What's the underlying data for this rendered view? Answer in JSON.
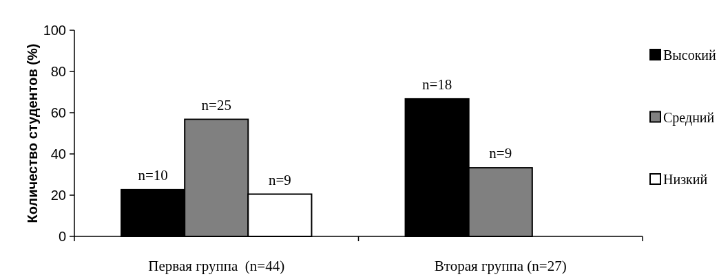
{
  "chart_data": {
    "type": "bar",
    "ylabel": "Количество студентов (%)",
    "categories": [
      "Первая группа  (n=44)",
      "Вторая группа (n=27)"
    ],
    "series": [
      {
        "name": "Высокий",
        "color": "#000000",
        "values": [
          22.7,
          66.7
        ]
      },
      {
        "name": "Средний",
        "color": "#808080",
        "values": [
          56.8,
          33.3
        ]
      },
      {
        "name": "Низкий",
        "color": "#ffffff",
        "values": [
          20.5,
          null
        ]
      }
    ],
    "annotations": [
      "n=10",
      "n=25",
      "n=9",
      "n=18",
      "n=9"
    ],
    "ylim": [
      0,
      100
    ],
    "yticks": [
      0,
      20,
      40,
      60,
      80,
      100
    ],
    "grid": false,
    "legend": "right"
  }
}
